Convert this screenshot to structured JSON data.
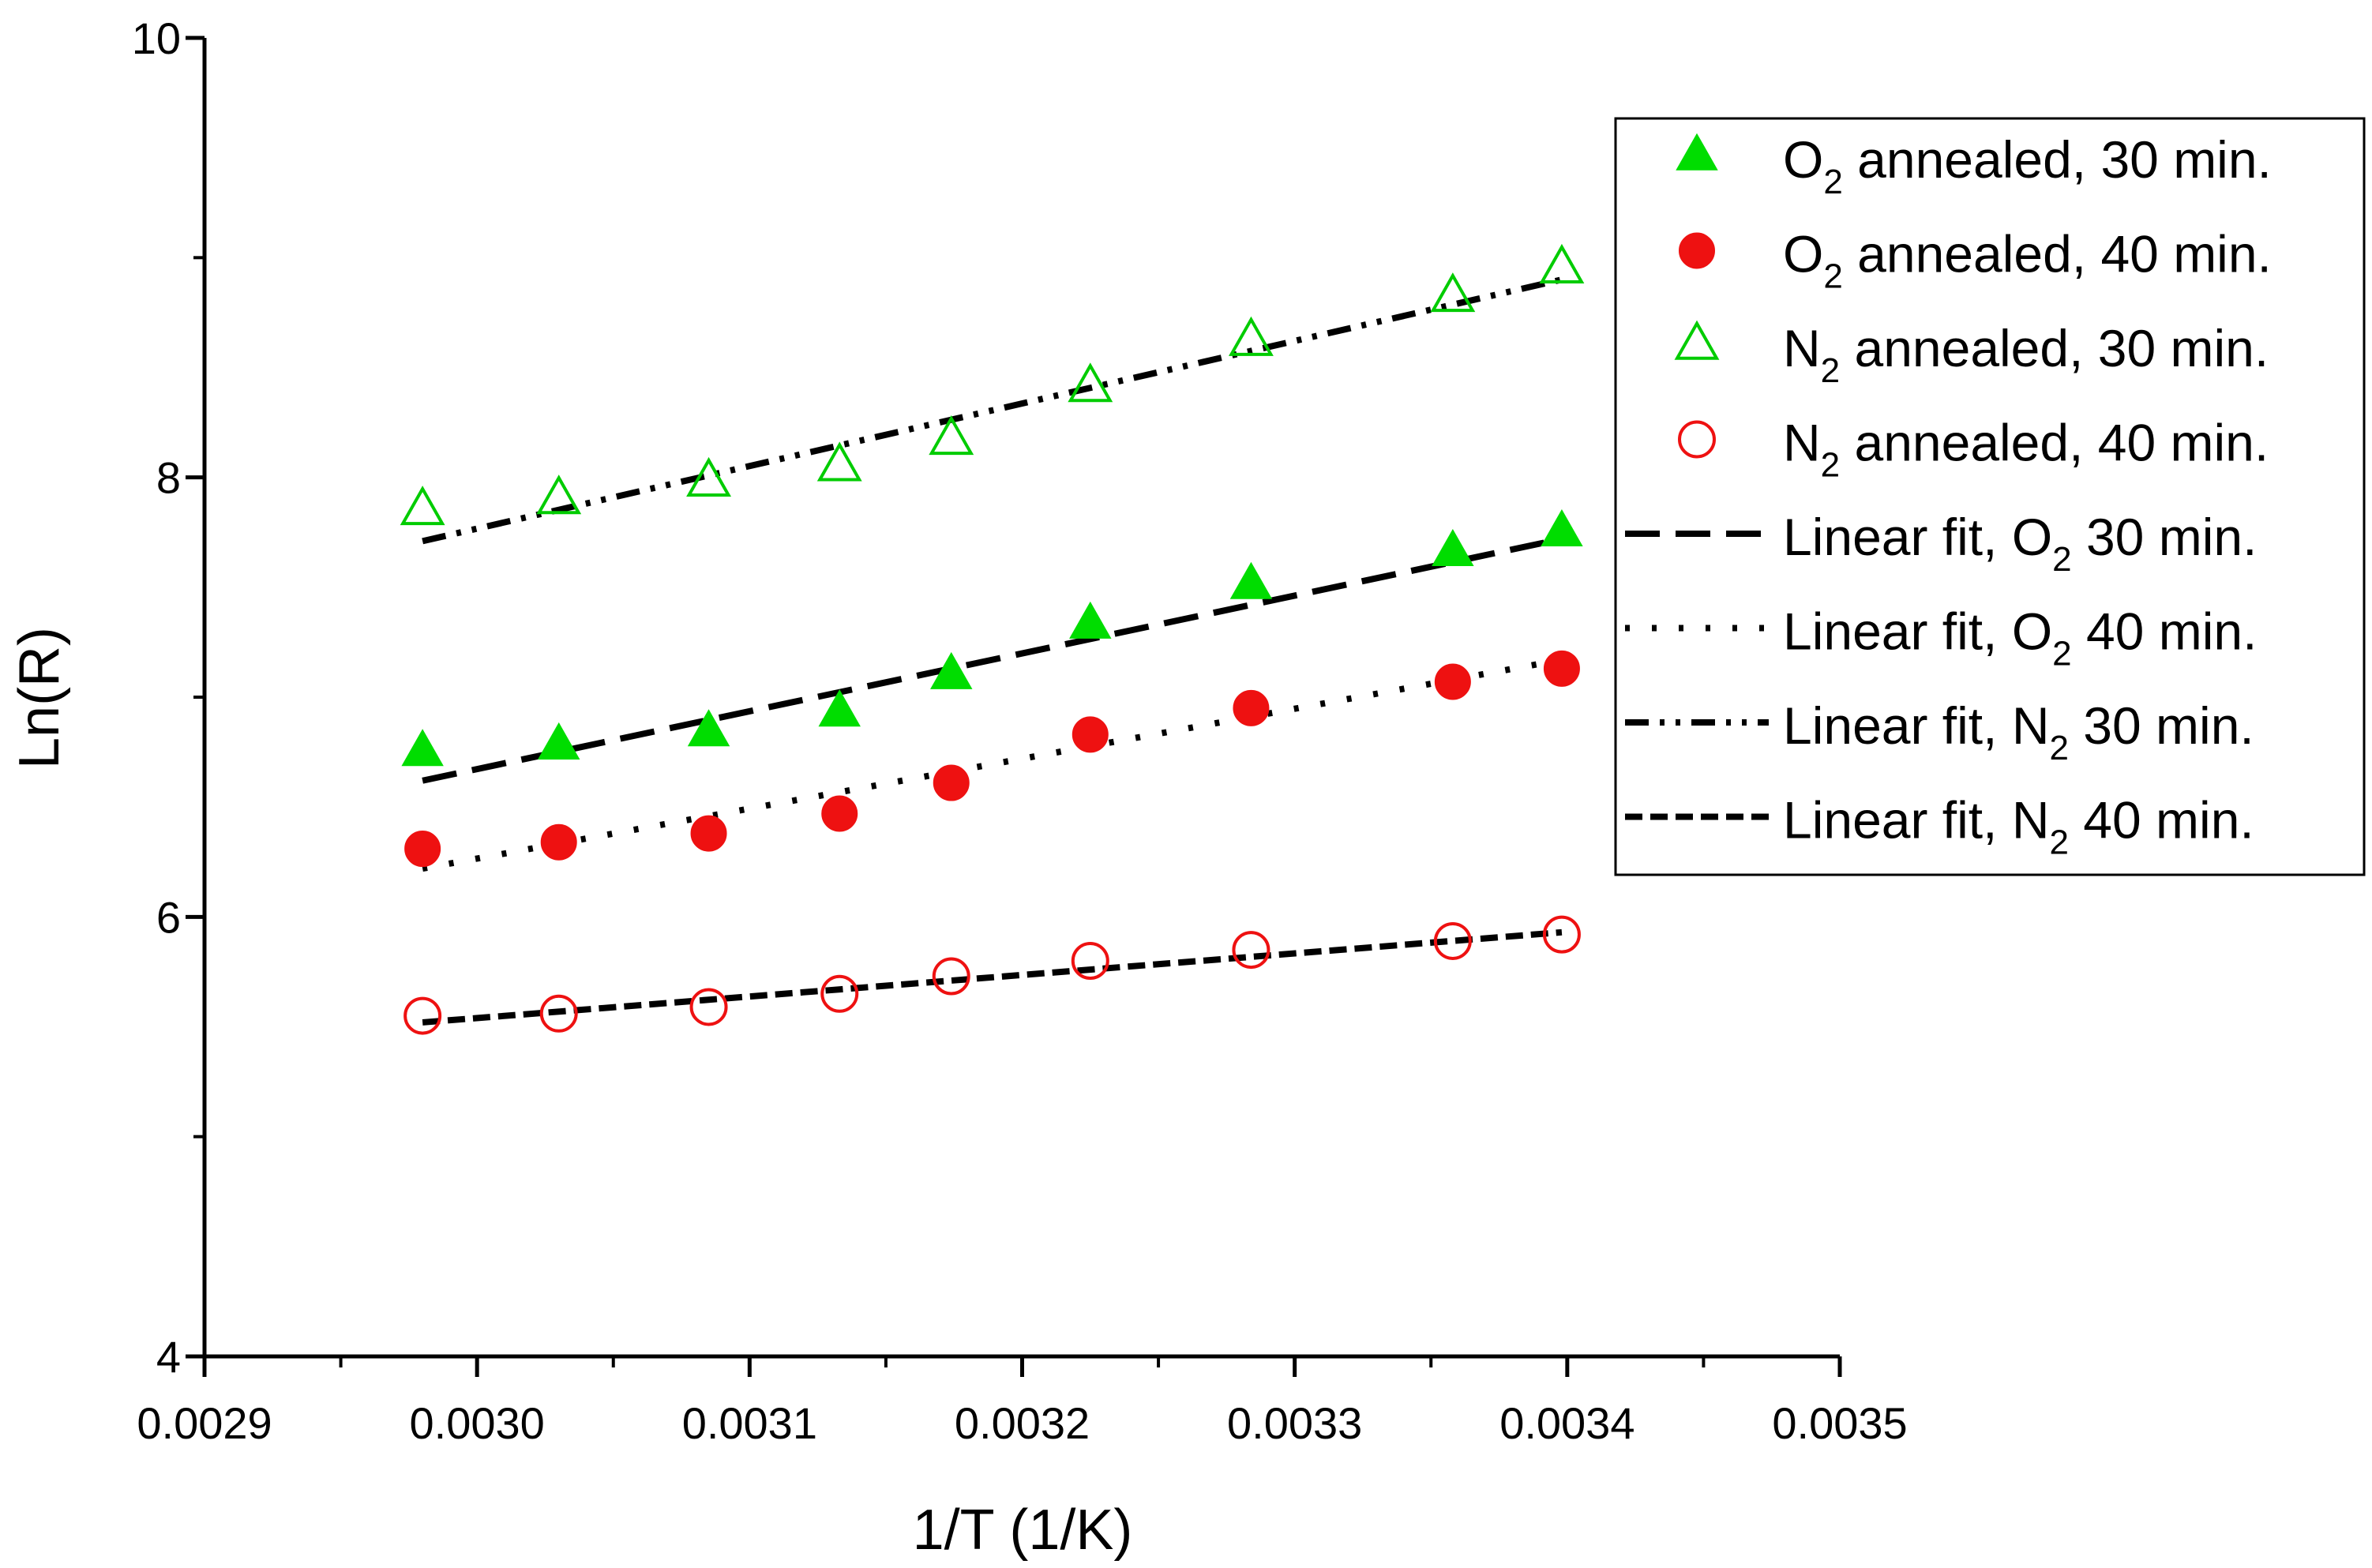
{
  "chart_data": {
    "type": "scatter",
    "xlabel": "1/T (1/K)",
    "ylabel": "Ln(R)",
    "xlim": [
      0.0029,
      0.0035
    ],
    "ylim": [
      4,
      10
    ],
    "xticks": [
      "0.0029",
      "0.0030",
      "0.0031",
      "0.0032",
      "0.0033",
      "0.0034",
      "0.0035"
    ],
    "yticks": [
      "4",
      "6",
      "8",
      "10"
    ],
    "x": [
      0.00298,
      0.00303,
      0.003085,
      0.003133,
      0.003174,
      0.003225,
      0.003284,
      0.003358,
      0.003398
    ],
    "series": [
      {
        "name": "O2 annealed, 30 min.",
        "legend": {
          "pre": "O",
          "sub": "2",
          "post": " annealed, 30 min."
        },
        "marker": "triangle-filled",
        "color": "#00dd00",
        "values": [
          6.75,
          6.78,
          6.84,
          6.93,
          7.1,
          7.33,
          7.51,
          7.66,
          7.75
        ]
      },
      {
        "name": "O2 annealed, 40 min.",
        "legend": {
          "pre": "O",
          "sub": "2",
          "post": " annealed, 40 min."
        },
        "marker": "circle-filled",
        "color": "#ee1111",
        "values": [
          6.31,
          6.34,
          6.38,
          6.47,
          6.61,
          6.83,
          6.95,
          7.07,
          7.13
        ]
      },
      {
        "name": "N2 annealed, 30 min.",
        "legend": {
          "pre": "N",
          "sub": "2",
          "post": " annealed, 30 min."
        },
        "marker": "triangle-open",
        "color": "#00cc00",
        "values": [
          7.85,
          7.9,
          7.98,
          8.05,
          8.17,
          8.41,
          8.62,
          8.82,
          8.95
        ]
      },
      {
        "name": "N2 annealed, 40 min.",
        "legend": {
          "pre": "N",
          "sub": "2",
          "post": " annealed, 40 min."
        },
        "marker": "circle-open",
        "color": "#ee1111",
        "values": [
          5.55,
          5.56,
          5.59,
          5.65,
          5.73,
          5.8,
          5.85,
          5.89,
          5.92
        ]
      }
    ],
    "fits": [
      {
        "name": "Linear fit, O2 30 min.",
        "legend": {
          "pre": "Linear fit, O",
          "sub": "2",
          "post": " 30 min."
        },
        "style": "long-dash",
        "x": [
          0.00298,
          0.003398
        ],
        "y": [
          6.62,
          7.72
        ]
      },
      {
        "name": "Linear fit, O2 40 min.",
        "legend": {
          "pre": "Linear fit, O",
          "sub": "2",
          "post": " 40 min."
        },
        "style": "dot",
        "x": [
          0.00298,
          0.003398
        ],
        "y": [
          6.22,
          7.17
        ]
      },
      {
        "name": "Linear fit, N2 30 min.",
        "legend": {
          "pre": "Linear fit, N",
          "sub": "2",
          "post": " 30 min."
        },
        "style": "dash-dot-dot",
        "x": [
          0.00298,
          0.003398
        ],
        "y": [
          7.71,
          8.9
        ]
      },
      {
        "name": "Linear fit, N2 40 min.",
        "legend": {
          "pre": "Linear fit, N",
          "sub": "2",
          "post": " 40 min."
        },
        "style": "short-dash",
        "x": [
          0.00298,
          0.003398
        ],
        "y": [
          5.52,
          5.93
        ]
      }
    ],
    "legend_position": "top-right"
  }
}
